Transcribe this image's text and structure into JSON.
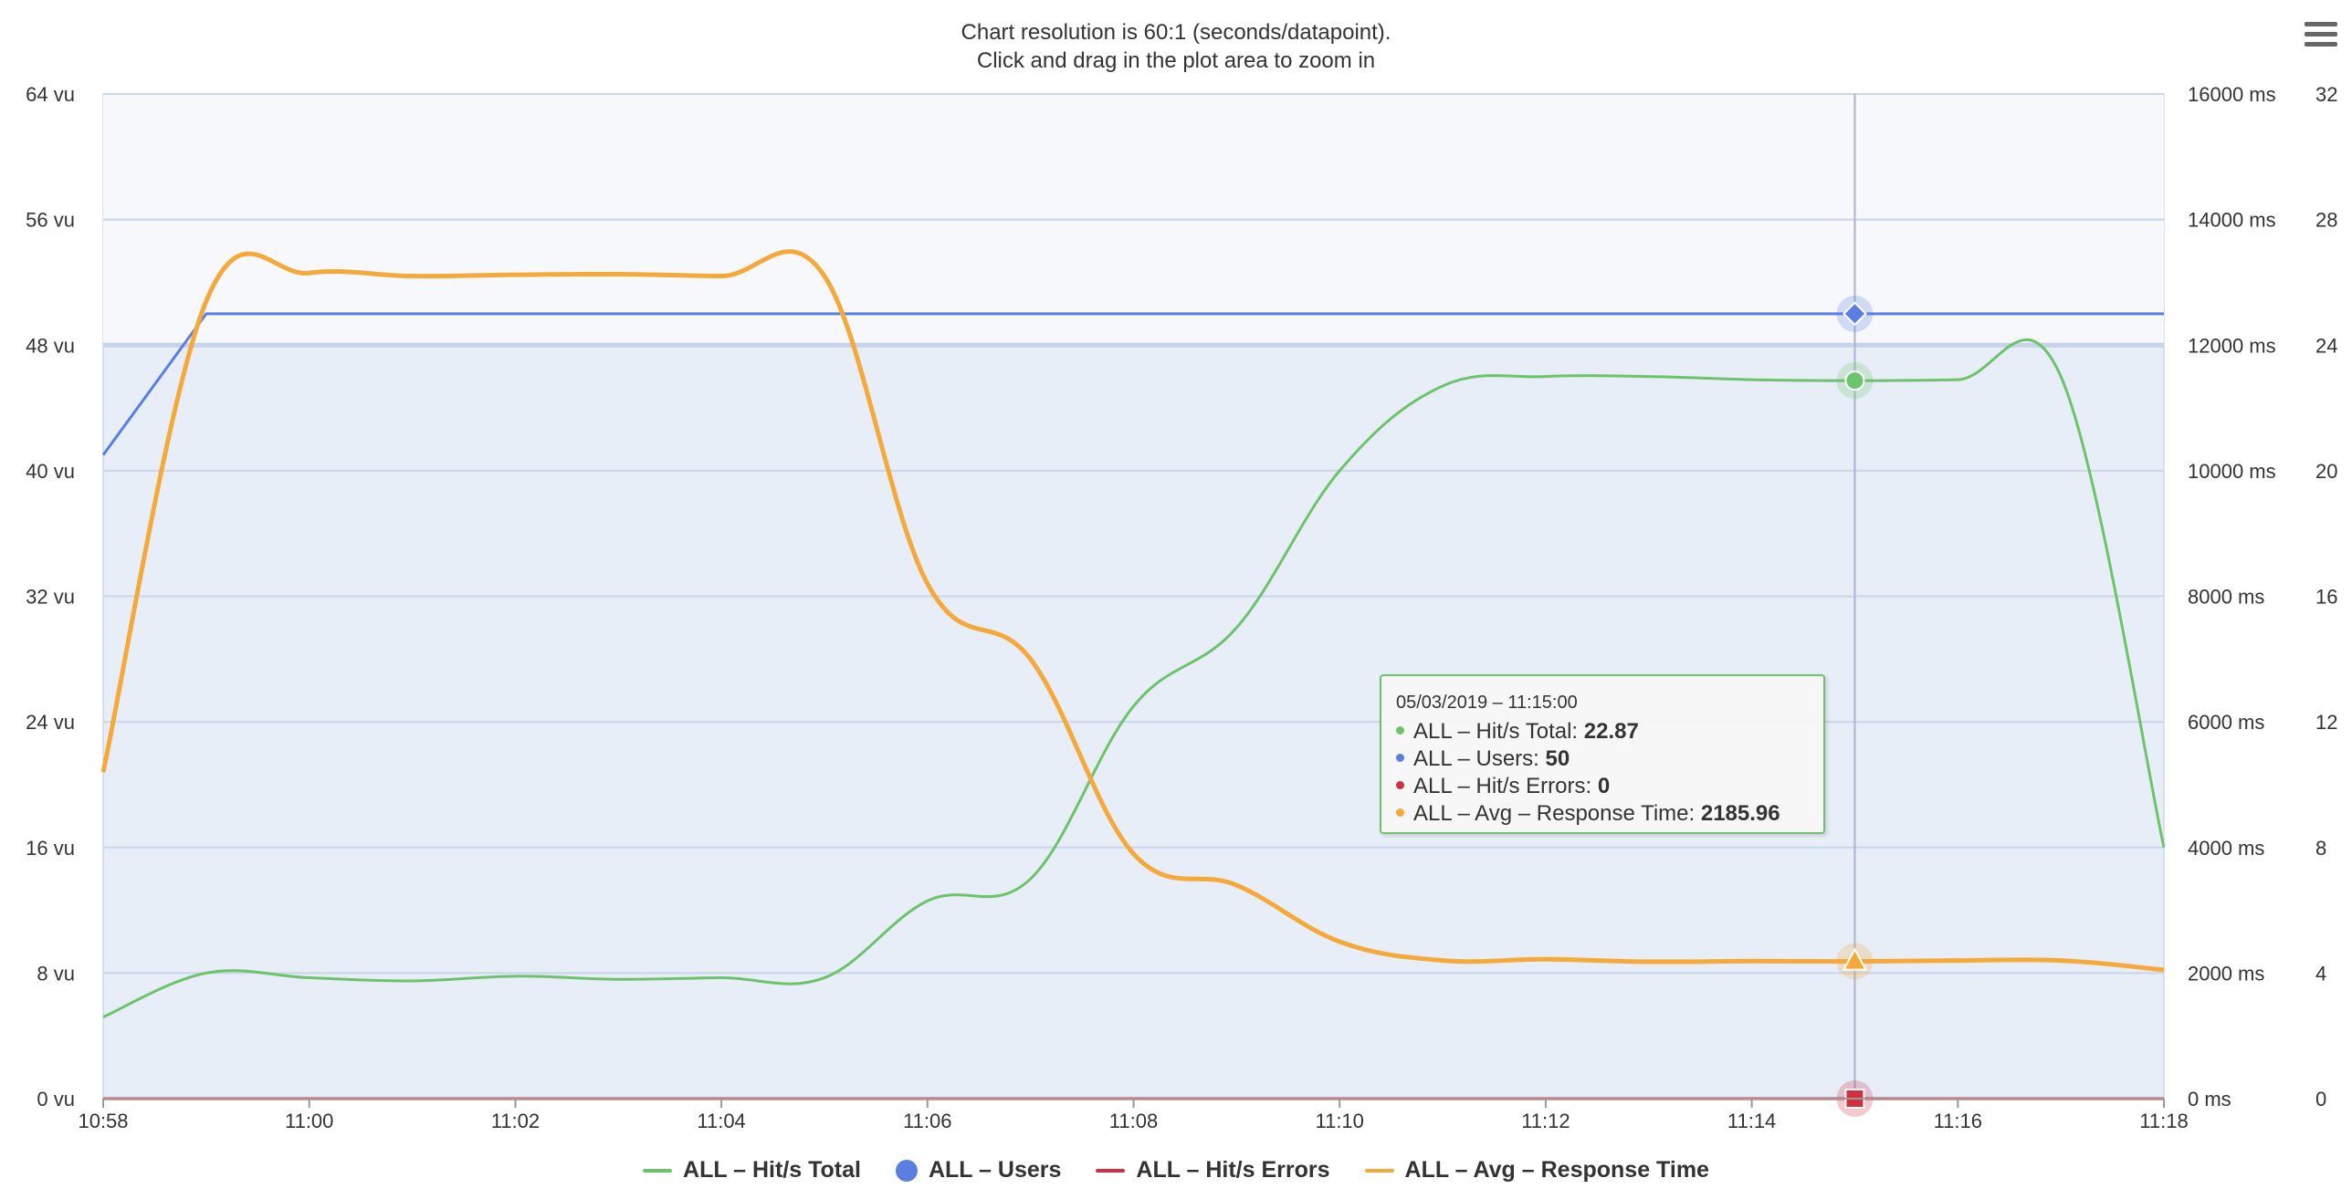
{
  "title_line1": "Chart resolution is 60:1 (seconds/datapoint).",
  "title_line2": "Click and drag in the plot area to zoom in",
  "menu_icon": "hamburger-menu-icon",
  "colors": {
    "hits": "#6cc36b",
    "users": "#5b7fe0",
    "errors": "#d0303f",
    "response": "#f4a93a",
    "plot_bg": "#e8eef8",
    "plot_bg_top": "#f6f8fc",
    "grid": "#c9d5ea"
  },
  "tooltip": {
    "date": "05/03/2019 – 11:15:00",
    "rows": [
      {
        "label": "ALL – Hit/s Total: ",
        "value": "22.87",
        "color": "#6cc36b"
      },
      {
        "label": "ALL – Users: ",
        "value": "50",
        "color": "#5b7fe0"
      },
      {
        "label": "ALL – Hit/s Errors: ",
        "value": "0",
        "color": "#d0303f"
      },
      {
        "label": "ALL – Avg – Response Time: ",
        "value": "2185.96",
        "color": "#f4a93a"
      }
    ]
  },
  "legend": [
    {
      "label": "ALL – Hit/s Total",
      "color": "#6cc36b",
      "shape": "line"
    },
    {
      "label": "ALL – Users",
      "color": "#5b7fe0",
      "shape": "dot"
    },
    {
      "label": "ALL – Hit/s Errors",
      "color": "#d0303f",
      "shape": "line"
    },
    {
      "label": "ALL – Avg – Response Time",
      "color": "#f4a93a",
      "shape": "line"
    }
  ],
  "chart_data": {
    "type": "line",
    "title": "Chart resolution is 60:1 (seconds/datapoint).",
    "subtitle": "Click and drag in the plot area to zoom in",
    "x": [
      "10:58",
      "10:59",
      "11:00",
      "11:01",
      "11:02",
      "11:03",
      "11:04",
      "11:05",
      "11:06",
      "11:07",
      "11:08",
      "11:09",
      "11:10",
      "11:11",
      "11:12",
      "11:13",
      "11:14",
      "11:15",
      "11:16",
      "11:17",
      "11:18"
    ],
    "x_tick_labels": [
      "10:58",
      "11:00",
      "11:02",
      "11:04",
      "11:06",
      "11:08",
      "11:10",
      "11:12",
      "11:14",
      "11:16",
      "11:18"
    ],
    "y_axes": [
      {
        "id": "users",
        "position": "left",
        "ticks": [
          "0 vu",
          "8 vu",
          "16 vu",
          "24 vu",
          "32 vu",
          "40 vu",
          "48 vu",
          "56 vu",
          "64 vu"
        ],
        "range": [
          0,
          64
        ]
      },
      {
        "id": "response",
        "position": "right",
        "ticks": [
          "0 ms",
          "2000 ms",
          "4000 ms",
          "6000 ms",
          "8000 ms",
          "10000 ms",
          "12000 ms",
          "14000 ms",
          "16000 ms"
        ],
        "range": [
          0,
          16000
        ]
      },
      {
        "id": "hits",
        "position": "right-outer",
        "ticks": [
          "0",
          "4",
          "8",
          "12",
          "16",
          "20",
          "24",
          "28",
          "32"
        ],
        "range": [
          0,
          32
        ]
      }
    ],
    "series": [
      {
        "name": "ALL – Hit/s Total",
        "axis": "hits",
        "values": [
          2.6,
          4.0,
          3.85,
          3.75,
          3.9,
          3.8,
          3.85,
          3.85,
          6.3,
          7.0,
          12.5,
          15.0,
          20.0,
          22.7,
          23.0,
          23.0,
          22.9,
          22.87,
          22.9,
          23.0,
          8.0
        ]
      },
      {
        "name": "ALL – Users",
        "axis": "users",
        "values": [
          41,
          50,
          50,
          50,
          50,
          50,
          50,
          50,
          50,
          50,
          50,
          50,
          50,
          50,
          50,
          50,
          50,
          50,
          50,
          50,
          50
        ]
      },
      {
        "name": "ALL – Hit/s Errors",
        "axis": "hits",
        "values": [
          0,
          0,
          0,
          0,
          0,
          0,
          0,
          0,
          0,
          0,
          0,
          0,
          0,
          0,
          0,
          0,
          0,
          0,
          0,
          0,
          0
        ]
      },
      {
        "name": "ALL – Avg – Response Time",
        "axis": "response",
        "values": [
          5200,
          12700,
          13150,
          13100,
          13120,
          13130,
          13100,
          13100,
          8200,
          7000,
          3900,
          3400,
          2500,
          2200,
          2220,
          2180,
          2190,
          2185.96,
          2200,
          2200,
          2050
        ]
      }
    ],
    "highlighted_x": "11:15",
    "grid": true,
    "legend_position": "bottom"
  }
}
